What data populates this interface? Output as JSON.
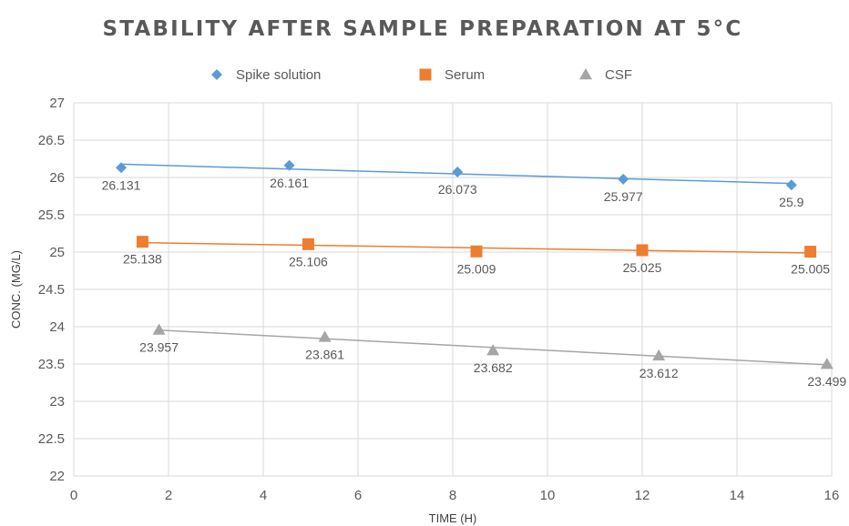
{
  "chart_data": {
    "type": "scatter",
    "title": "STABILITY AFTER SAMPLE PREPARATION AT 5°C",
    "xlabel": "TIME (H)",
    "ylabel": "CONC. (MG/L)",
    "xlim": [
      0,
      16
    ],
    "ylim": [
      22,
      27
    ],
    "xticks": [
      0,
      2,
      4,
      6,
      8,
      10,
      12,
      14,
      16
    ],
    "yticks": [
      22,
      22.5,
      23,
      23.5,
      24,
      24.5,
      25,
      25.5,
      26,
      26.5,
      27
    ],
    "grid": true,
    "legend_position": "top",
    "trendlines": true,
    "series": [
      {
        "name": "Spike solution",
        "marker": "diamond",
        "color": "#5b9bd5",
        "x": [
          1.0,
          4.55,
          8.1,
          11.6,
          15.15
        ],
        "y": [
          26.131,
          26.161,
          26.073,
          25.977,
          25.9
        ],
        "labels": [
          "26.131",
          "26.161",
          "26.073",
          "25.977",
          "25.9"
        ]
      },
      {
        "name": "Serum",
        "marker": "square",
        "color": "#ed7d31",
        "x": [
          1.45,
          4.95,
          8.5,
          12.0,
          15.55
        ],
        "y": [
          25.138,
          25.106,
          25.009,
          25.025,
          25.005
        ],
        "labels": [
          "25.138",
          "25.106",
          "25.009",
          "25.025",
          "25.005"
        ]
      },
      {
        "name": "CSF",
        "marker": "triangle",
        "color": "#a5a5a5",
        "x": [
          1.8,
          5.3,
          8.85,
          12.35,
          15.9
        ],
        "y": [
          23.957,
          23.861,
          23.682,
          23.612,
          23.499
        ],
        "labels": [
          "23.957",
          "23.861",
          "23.682",
          "23.612",
          "23.499"
        ]
      }
    ]
  }
}
